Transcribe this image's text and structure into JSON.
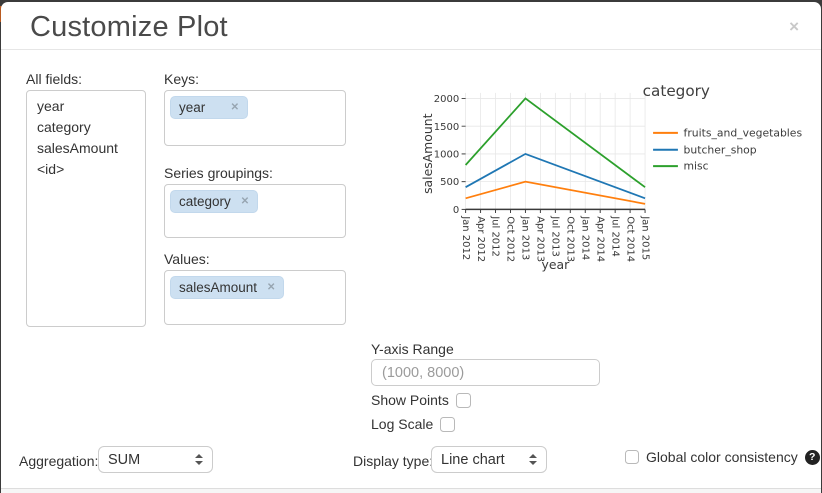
{
  "dialog": {
    "title": "Customize Plot",
    "close_label": "×"
  },
  "fields_panel": {
    "label": "All fields:",
    "items": [
      "year",
      "category",
      "salesAmount",
      "<id>"
    ]
  },
  "selectors": {
    "keys": {
      "label": "Keys:",
      "tag": {
        "text": "year",
        "remove": "✕"
      }
    },
    "series_groupings": {
      "label": "Series groupings:",
      "tag": {
        "text": "category",
        "remove": "✕"
      }
    },
    "values": {
      "label": "Values:",
      "tag": {
        "text": "salesAmount",
        "remove": "✕"
      }
    }
  },
  "controls": {
    "y_axis_range": {
      "label": "Y-axis Range",
      "placeholder": "(1000, 8000)"
    },
    "show_points": {
      "label": "Show Points",
      "checked": false
    },
    "log_scale": {
      "label": "Log Scale",
      "checked": false
    },
    "aggregation": {
      "label": "Aggregation:",
      "value": "SUM"
    },
    "display_type": {
      "label": "Display type:",
      "value": "Line chart"
    },
    "global_color": {
      "label": "Global color consistency",
      "checked": false,
      "help_icon": "?"
    }
  },
  "chart_data": {
    "type": "line",
    "legend_title": "category",
    "xlabel": "year",
    "ylabel": "salesAmount",
    "x": [
      "Jan 2012",
      "Jan 2013",
      "Jan 2015"
    ],
    "x_indices": [
      0,
      4,
      12
    ],
    "x_tick_labels": [
      "Jan 2012",
      "Apr 2012",
      "Jul 2012",
      "Oct 2012",
      "Jan 2013",
      "Apr 2013",
      "Jul 2013",
      "Oct 2013",
      "Jan 2014",
      "Apr 2014",
      "Jul 2014",
      "Oct 2014",
      "Jan 2015"
    ],
    "y_ticks": [
      0,
      500,
      1000,
      1500,
      2000
    ],
    "ylim": [
      0,
      2100
    ],
    "grid": true,
    "legend_position": "right",
    "series": [
      {
        "name": "fruits_and_vegetables",
        "color": "#ff7f0e",
        "values": [
          200,
          500,
          100
        ]
      },
      {
        "name": "butcher_shop",
        "color": "#1f77b4",
        "values": [
          400,
          1000,
          200
        ]
      },
      {
        "name": "misc",
        "color": "#2ca02c",
        "values": [
          800,
          2000,
          400
        ]
      }
    ]
  }
}
